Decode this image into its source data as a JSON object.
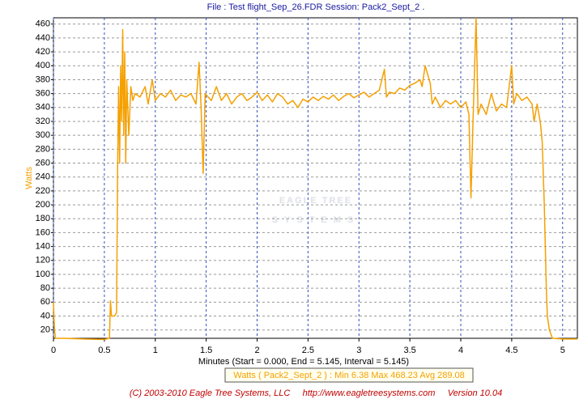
{
  "chart_data": {
    "type": "line",
    "title": "File : Test flight_Sep_26.FDR   Session: Pack2_Sept_2 .",
    "y_label": "Watts",
    "x_label": "Minutes (Start = 0.000, End = 5.145, Interval = 5.145)",
    "legend_text": "Watts ( Pack2_Sept_2 ) : Min 6.38   Max 468.23   Avg 289.08",
    "footer": "(C) 2003-2010 Eagle Tree Systems, LLC     http://www.eagletreesystems.com     Version 10.04",
    "watermark": [
      "EAGLE TREE",
      "SYSTEMS"
    ],
    "grid": true,
    "xlim": [
      0,
      5.145
    ],
    "xticks": [
      0,
      0.5,
      1,
      1.5,
      2,
      2.5,
      3,
      3.5,
      4,
      4.5,
      5
    ],
    "ylim": [
      8,
      469
    ],
    "yticks": [
      20,
      40,
      60,
      80,
      100,
      120,
      140,
      160,
      180,
      200,
      220,
      240,
      260,
      280,
      300,
      320,
      340,
      360,
      380,
      400,
      420,
      440,
      460
    ],
    "x": [
      0,
      0.01,
      0.02,
      0.1,
      0.3,
      0.5,
      0.55,
      0.56,
      0.57,
      0.6,
      0.62,
      0.63,
      0.64,
      0.65,
      0.66,
      0.67,
      0.68,
      0.69,
      0.7,
      0.71,
      0.72,
      0.74,
      0.76,
      0.78,
      0.8,
      0.85,
      0.9,
      0.93,
      0.97,
      1.0,
      1.05,
      1.1,
      1.15,
      1.2,
      1.25,
      1.3,
      1.35,
      1.4,
      1.43,
      1.45,
      1.47,
      1.49,
      1.55,
      1.6,
      1.65,
      1.7,
      1.75,
      1.8,
      1.85,
      1.9,
      1.95,
      2.0,
      2.05,
      2.1,
      2.15,
      2.2,
      2.25,
      2.3,
      2.35,
      2.4,
      2.45,
      2.5,
      2.55,
      2.6,
      2.65,
      2.7,
      2.75,
      2.8,
      2.85,
      2.9,
      2.95,
      3.0,
      3.05,
      3.1,
      3.15,
      3.2,
      3.25,
      3.27,
      3.3,
      3.35,
      3.4,
      3.45,
      3.5,
      3.55,
      3.6,
      3.62,
      3.65,
      3.68,
      3.7,
      3.72,
      3.75,
      3.8,
      3.85,
      3.9,
      3.95,
      4.0,
      4.05,
      4.08,
      4.1,
      4.12,
      4.15,
      4.17,
      4.2,
      4.25,
      4.3,
      4.35,
      4.4,
      4.45,
      4.5,
      4.52,
      4.55,
      4.6,
      4.65,
      4.7,
      4.72,
      4.75,
      4.78,
      4.8,
      4.82,
      4.84,
      4.85,
      4.87,
      4.9,
      5.0,
      5.145
    ],
    "series": [
      {
        "name": "Watts",
        "color": "#f5a000",
        "values": [
          60,
          20,
          8,
          8,
          7,
          6.38,
          8,
          62,
          40,
          40,
          45,
          250,
          370,
          260,
          400,
          320,
          452,
          300,
          420,
          260,
          380,
          300,
          370,
          350,
          360,
          355,
          370,
          345,
          380,
          350,
          360,
          355,
          365,
          350,
          358,
          355,
          360,
          345,
          405,
          340,
          245,
          360,
          350,
          370,
          350,
          360,
          345,
          355,
          360,
          350,
          355,
          362,
          350,
          358,
          348,
          360,
          355,
          345,
          350,
          340,
          352,
          348,
          355,
          350,
          356,
          352,
          358,
          350,
          356,
          360,
          354,
          358,
          362,
          355,
          360,
          365,
          395,
          355,
          362,
          360,
          368,
          365,
          372,
          375,
          380,
          370,
          400,
          385,
          375,
          345,
          355,
          340,
          350,
          345,
          350,
          340,
          348,
          330,
          210,
          320,
          468.23,
          330,
          345,
          330,
          360,
          335,
          345,
          340,
          400,
          345,
          360,
          350,
          355,
          345,
          320,
          345,
          320,
          290,
          200,
          80,
          40,
          20,
          8,
          7,
          7
        ]
      }
    ]
  }
}
